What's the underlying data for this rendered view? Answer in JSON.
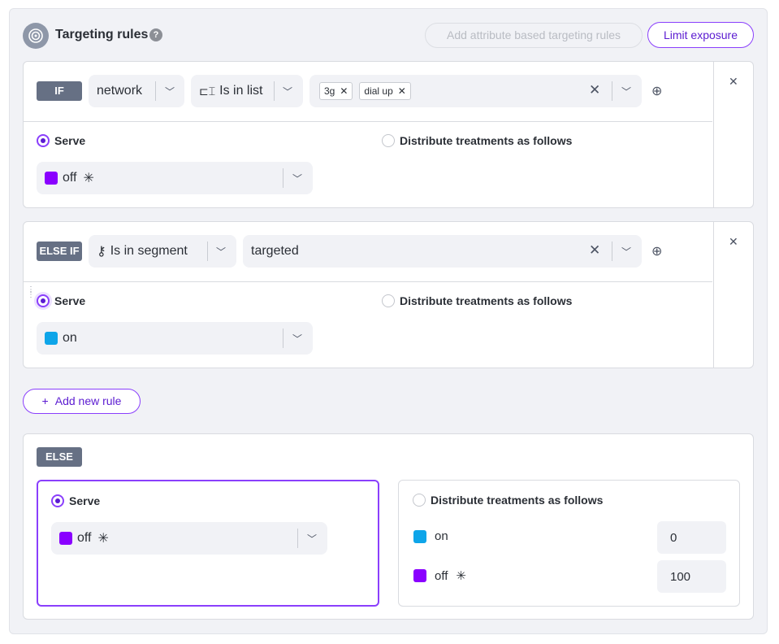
{
  "header": {
    "title": "Targeting rules",
    "help": "?",
    "add_attr_label": "Add attribute based targeting rules",
    "limit_label": "Limit exposure"
  },
  "rules": [
    {
      "tag": "IF",
      "attribute": "network",
      "operator": "Is in list",
      "values": [
        "3g",
        "dial up"
      ],
      "serve_label": "Serve",
      "distribute_label": "Distribute treatments as follows",
      "treatment": "off",
      "treatment_color": "#8a00ff",
      "default_marker": "✳",
      "selected": "serve"
    },
    {
      "tag": "ELSE IF",
      "operator": "Is in segment",
      "value": "targeted",
      "serve_label": "Serve",
      "distribute_label": "Distribute treatments as follows",
      "treatment": "on",
      "treatment_color": "#0ea5e9",
      "selected": "serve"
    }
  ],
  "add_rule_label": "Add new rule",
  "else": {
    "tag": "ELSE",
    "serve_label": "Serve",
    "treatment": "off",
    "default_marker": "✳",
    "distribute_label": "Distribute treatments as follows",
    "distribution": [
      {
        "name": "on",
        "color": "#0ea5e9",
        "value": "0"
      },
      {
        "name": "off",
        "color": "#8a00ff",
        "value": "100",
        "marker": "✳"
      }
    ]
  }
}
